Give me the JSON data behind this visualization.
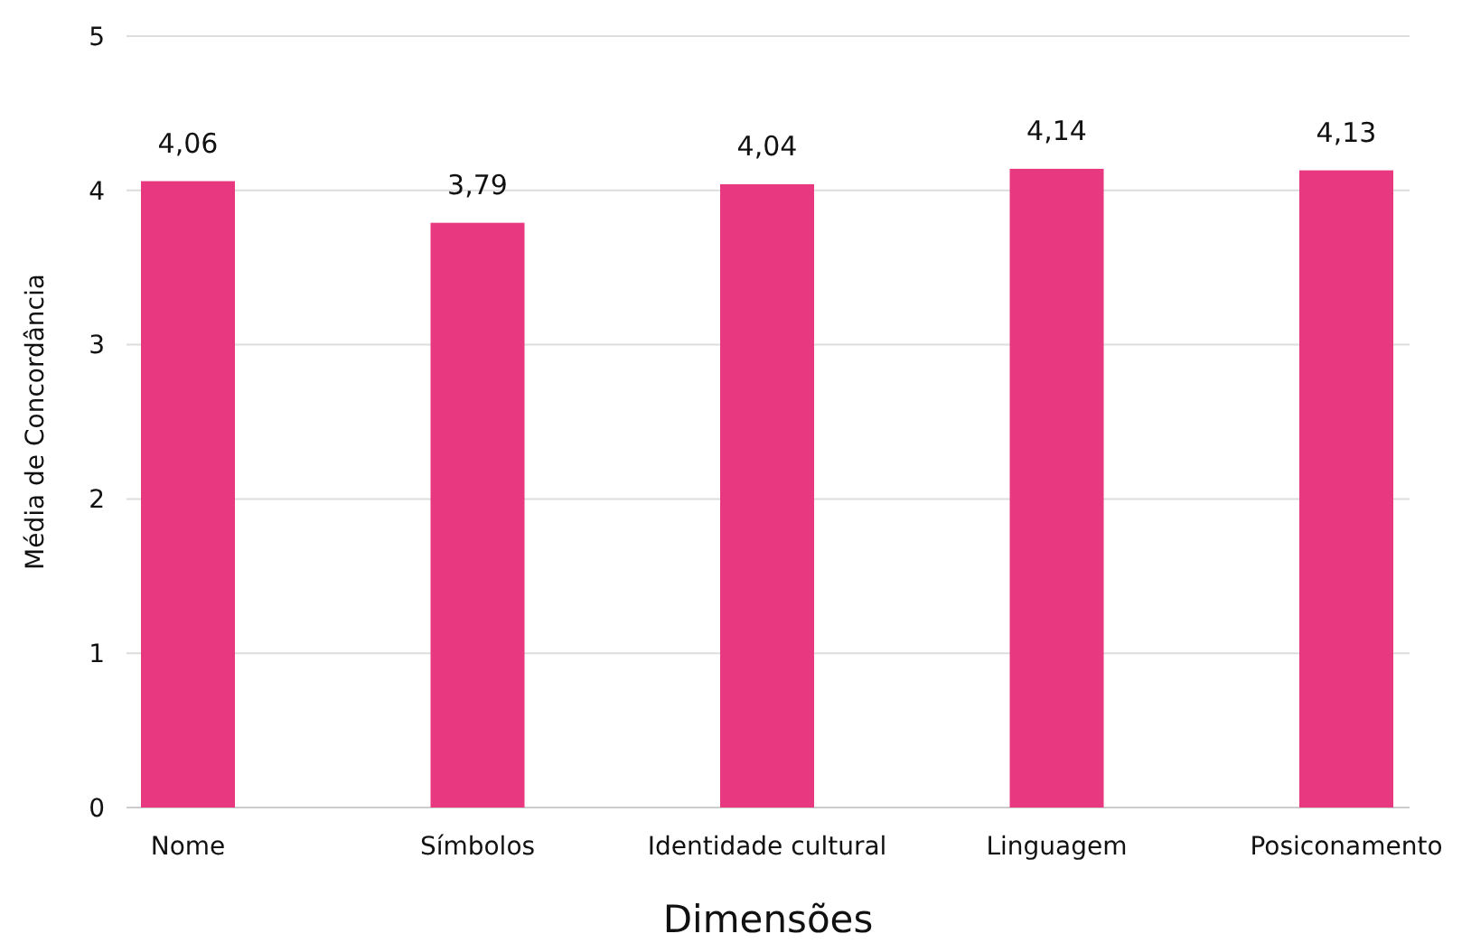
{
  "chart_data": {
    "type": "bar",
    "xlabel": "Dimensões",
    "ylabel": "Média de Concordância",
    "categories": [
      "Nome",
      "Símbolos",
      "Identidade cultural",
      "Linguagem",
      "Posiconamento"
    ],
    "values": [
      4.06,
      3.79,
      4.04,
      4.14,
      4.13
    ],
    "value_labels": [
      "4,06",
      "3,79",
      "4,04",
      "4,14",
      "4,13"
    ],
    "color": "#e8387f",
    "ylim": [
      0,
      5
    ],
    "yticks": [
      0,
      1,
      2,
      3,
      4,
      5
    ],
    "grid": "y"
  }
}
